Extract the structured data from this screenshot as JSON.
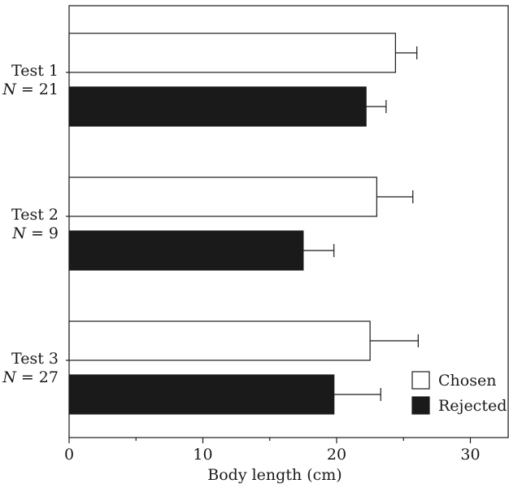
{
  "chart_data": {
    "type": "bar",
    "orientation": "horizontal",
    "categories": [
      {
        "test": "Test 1",
        "n_label": "N",
        "n_value": "= 21"
      },
      {
        "test": "Test 2",
        "n_label": "N",
        "n_value": "= 9"
      },
      {
        "test": "Test 3",
        "n_label": "N",
        "n_value": "= 27"
      }
    ],
    "series": [
      {
        "name": "Chosen",
        "color": "#ffffff",
        "values": [
          24.4,
          23.0,
          22.5
        ],
        "errors": [
          1.6,
          2.7,
          3.6
        ]
      },
      {
        "name": "Rejected",
        "color": "#1a1a1a",
        "values": [
          22.2,
          17.5,
          19.8
        ],
        "errors": [
          1.5,
          2.3,
          3.5
        ]
      }
    ],
    "xlabel": "Body length (cm)",
    "xlim": [
      0,
      32.5
    ],
    "xticks": [
      0,
      10,
      20,
      30
    ],
    "xticks_minor": [
      5,
      15,
      25
    ],
    "grid": false,
    "legend_position": "bottom-right",
    "frame": "box"
  }
}
